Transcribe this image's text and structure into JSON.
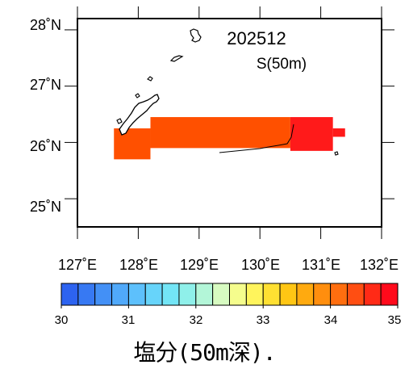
{
  "map": {
    "title": "202512",
    "subtitle": "S(50m)",
    "lat_labels": [
      "28˚N",
      "27˚N",
      "26˚N",
      "25˚N"
    ],
    "lon_labels": [
      "127˚E",
      "128˚E",
      "129˚E",
      "130˚E",
      "131˚E",
      "132˚E"
    ],
    "lat_values": [
      28,
      27,
      26,
      25
    ],
    "lon_values": [
      127,
      128,
      129,
      130,
      131,
      132
    ],
    "extent": {
      "lon_min": 127,
      "lon_max": 132,
      "lat_min": 24.5,
      "lat_max": 28.2
    },
    "fill_color": "#FF5000",
    "high_fill_color": "#FF1A1A",
    "outline_color": "#000000",
    "background_color": "#FFFFFF",
    "salinity_field": [
      {
        "name": "west-block",
        "value": 33.8,
        "color": "#FF5000",
        "lon": [
          127.6,
          128.2
        ],
        "lat": [
          25.7,
          26.25
        ]
      },
      {
        "name": "central-band",
        "value": 33.9,
        "color": "#FF5000",
        "lon": [
          128.2,
          130.5
        ],
        "lat": [
          25.9,
          26.45
        ]
      },
      {
        "name": "east-core",
        "value": 34.8,
        "color": "#FF1A1A",
        "lon": [
          130.5,
          131.2
        ],
        "lat": [
          25.85,
          26.45
        ]
      },
      {
        "name": "east-tail",
        "value": 34.8,
        "color": "#FF1A1A",
        "lon": [
          131.2,
          131.4
        ],
        "lat": [
          26.1,
          26.25
        ]
      }
    ]
  },
  "colorbar": {
    "min": 30,
    "max": 35,
    "step": 0.25,
    "tick_labels": [
      "30",
      "31",
      "32",
      "33",
      "34",
      "35"
    ],
    "colors": [
      "#2D63F0",
      "#3779F3",
      "#4390F6",
      "#50A9FA",
      "#5DC0FC",
      "#67D4FA",
      "#73E5F6",
      "#8FF0EA",
      "#B3F6D8",
      "#D7FBC1",
      "#F5FD8D",
      "#FFF45C",
      "#FFE032",
      "#FFC614",
      "#FFAA0F",
      "#FF8E0E",
      "#FF6E0F",
      "#FF4E12",
      "#FF2A16",
      "#FF0A1B"
    ]
  },
  "caption": "塩分(50m深)."
}
